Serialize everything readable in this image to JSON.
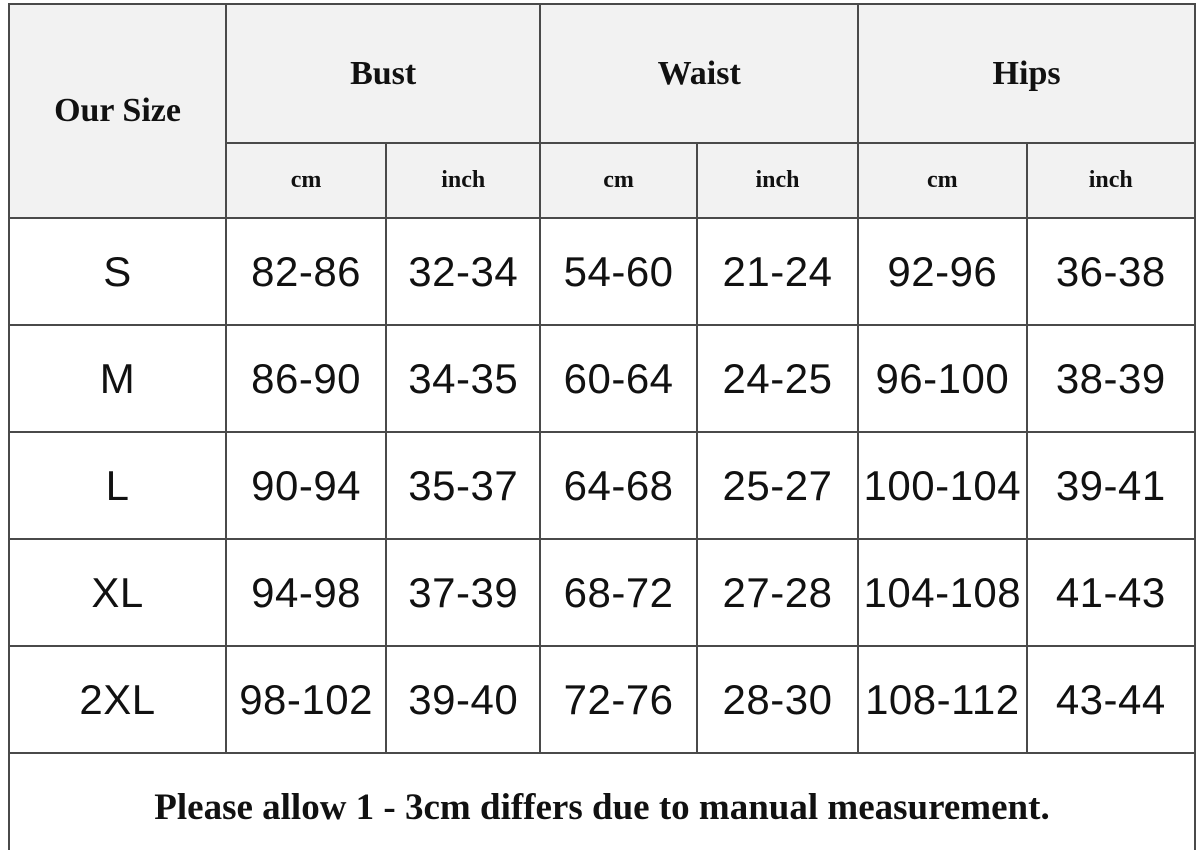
{
  "table": {
    "corner_header": "Our Size",
    "group_headers": [
      "Bust",
      "Waist",
      "Hips"
    ],
    "sub_headers": [
      "cm",
      "inch",
      "cm",
      "inch",
      "cm",
      "inch"
    ],
    "rows": [
      {
        "size": "S",
        "values": [
          "82-86",
          "32-34",
          "54-60",
          "21-24",
          "92-96",
          "36-38"
        ]
      },
      {
        "size": "M",
        "values": [
          "86-90",
          "34-35",
          "60-64",
          "24-25",
          "96-100",
          "38-39"
        ]
      },
      {
        "size": "L",
        "values": [
          "90-94",
          "35-37",
          "64-68",
          "25-27",
          "100-104",
          "39-41"
        ]
      },
      {
        "size": "XL",
        "values": [
          "94-98",
          "37-39",
          "68-72",
          "27-28",
          "104-108",
          "41-43"
        ]
      },
      {
        "size": "2XL",
        "values": [
          "98-102",
          "39-40",
          "72-76",
          "28-30",
          "108-112",
          "43-44"
        ]
      }
    ],
    "footer_note": "Please allow 1 - 3cm differs due to manual measurement."
  },
  "colors": {
    "header_background": "#f2f2f2",
    "border": "#4a4a4a",
    "text": "#111111",
    "data_background": "#ffffff"
  }
}
